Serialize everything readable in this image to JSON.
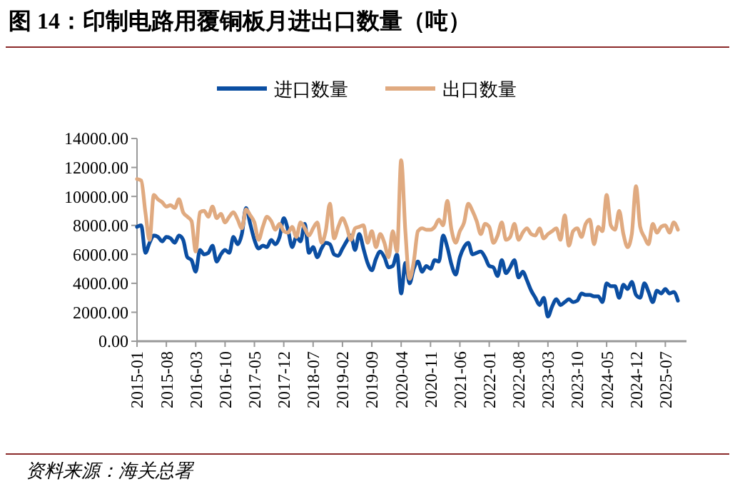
{
  "chart_data": {
    "type": "line",
    "title": "图 14：印制电路用覆铜板月进出口数量（吨）",
    "annotations": [
      "资料来源：海关总署"
    ],
    "categories": [
      "2015-01",
      null,
      null,
      null,
      null,
      null,
      null,
      "2015-08",
      null,
      null,
      null,
      null,
      null,
      null,
      "2016-03",
      null,
      null,
      null,
      null,
      null,
      null,
      "2016-10",
      null,
      null,
      null,
      null,
      null,
      null,
      "2017-05",
      null,
      null,
      null,
      null,
      null,
      null,
      "2017-12",
      null,
      null,
      null,
      null,
      null,
      null,
      "2018-07",
      null,
      null,
      null,
      null,
      null,
      null,
      "2019-02",
      null,
      null,
      null,
      null,
      null,
      null,
      "2019-09",
      null,
      null,
      null,
      null,
      null,
      null,
      "2020-04",
      null,
      null,
      null,
      null,
      null,
      null,
      "2020-11",
      null,
      null,
      null,
      null,
      null,
      null,
      "2021-06",
      null,
      null,
      null,
      null,
      null,
      null,
      "2022-01",
      null,
      null,
      null,
      null,
      null,
      null,
      "2022-08",
      null,
      null,
      null,
      null,
      null,
      null,
      "2023-03",
      null,
      null,
      null,
      null,
      null,
      null,
      "2023-10",
      null,
      null,
      null,
      null,
      null,
      null,
      "2024-05",
      null,
      null,
      null,
      null,
      null,
      null,
      "2024-12",
      null,
      null,
      null,
      null,
      null,
      null,
      "2025-07",
      null,
      null,
      null
    ],
    "series": [
      {
        "name": "进口数量",
        "color": "#0b4ea2",
        "values": [
          7900,
          8000,
          6100,
          6800,
          7300,
          7200,
          6900,
          7200,
          7100,
          6800,
          7300,
          7000,
          5800,
          5600,
          4800,
          6300,
          6000,
          6100,
          6600,
          5500,
          6000,
          6300,
          6100,
          7200,
          6700,
          7400,
          9200,
          8100,
          7000,
          6400,
          6600,
          6500,
          7000,
          6700,
          7200,
          8500,
          7700,
          6500,
          7200,
          6900,
          8100,
          6100,
          6500,
          5800,
          6400,
          6800,
          6700,
          6000,
          5900,
          6400,
          6900,
          7300,
          6300,
          7400,
          6400,
          5400,
          4900,
          5700,
          6200,
          5800,
          5100,
          5200,
          6000,
          3300,
          5400,
          4000,
          5000,
          5500,
          4800,
          5200,
          5000,
          5600,
          5500,
          7300,
          6500,
          5300,
          4600,
          5800,
          6500,
          6800,
          6000,
          6100,
          6200,
          5800,
          5200,
          5100,
          4500,
          5600,
          4700,
          5100,
          5600,
          4400,
          4800,
          4200,
          3500,
          3000,
          2500,
          3000,
          1700,
          2400,
          2900,
          2500,
          2700,
          2900,
          2700,
          2800,
          3300,
          3200,
          3200,
          3100,
          3100,
          2700,
          4000,
          3800,
          3800,
          3000,
          3900,
          3600,
          4100,
          3200,
          3000,
          4000,
          3400,
          2700,
          3500,
          3300,
          3600,
          3300,
          3400,
          2800
        ]
      },
      {
        "name": "出口数量",
        "color": "#e0aa80",
        "values": [
          11200,
          11100,
          8900,
          7000,
          10100,
          9800,
          9600,
          9300,
          9400,
          9200,
          9800,
          8900,
          8600,
          8300,
          6200,
          8900,
          9000,
          8600,
          9300,
          8500,
          8800,
          8200,
          8600,
          8900,
          8400,
          7800,
          9100,
          8700,
          8200,
          7000,
          7900,
          8600,
          8300,
          7700,
          8100,
          7600,
          7500,
          7900,
          7200,
          8200,
          7800,
          7300,
          7800,
          8200,
          6800,
          7600,
          9500,
          7100,
          7900,
          8500,
          7900,
          7000,
          7800,
          7900,
          8000,
          6800,
          7600,
          6500,
          7400,
          6800,
          5800,
          7600,
          6200,
          12500,
          7600,
          4300,
          5500,
          7600,
          7800,
          7700,
          7700,
          7900,
          8400,
          8000,
          9700,
          7700,
          6800,
          7600,
          8200,
          9500,
          9000,
          8300,
          7400,
          8100,
          7900,
          6800,
          7300,
          8200,
          7000,
          7200,
          8100,
          7000,
          7500,
          7800,
          7400,
          7300,
          7800,
          7100,
          7400,
          7600,
          7800,
          7000,
          8700,
          6600,
          7600,
          7800,
          7200,
          8100,
          8400,
          6700,
          7900,
          7600,
          10100,
          8000,
          7700,
          9000,
          7400,
          6500,
          7400,
          10700,
          7900,
          7200,
          6700,
          8100,
          7500,
          7900,
          8000,
          7500,
          8200,
          7700
        ]
      }
    ],
    "ylim": [
      0,
      14000
    ],
    "yticks": [
      {
        "value": 0,
        "label": "0.00"
      },
      {
        "value": 2000,
        "label": "2000.00"
      },
      {
        "value": 4000,
        "label": "4000.00"
      },
      {
        "value": 6000,
        "label": "6000.00"
      },
      {
        "value": 8000,
        "label": "8000.00"
      },
      {
        "value": 10000,
        "label": "10000.00"
      },
      {
        "value": 12000,
        "label": "12000.00"
      },
      {
        "value": 14000,
        "label": "14000.00"
      }
    ],
    "legend": "top",
    "grid": false,
    "line_style": "solid",
    "marker": "none"
  }
}
